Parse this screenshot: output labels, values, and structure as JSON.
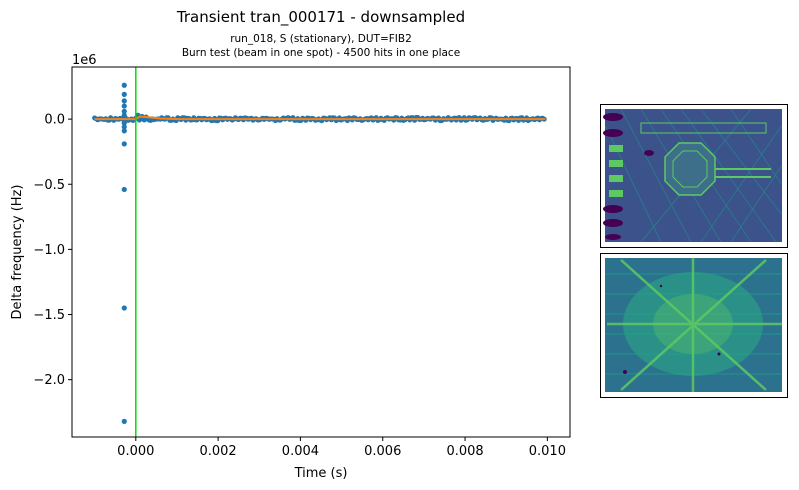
{
  "chart_data": {
    "type": "scatter",
    "title": "Transient tran_000171 - downsampled",
    "subtitle_lines": [
      "run_018, S (stationary), DUT=FIB2",
      "Burn test (beam in one spot) - 4500 hits in one place"
    ],
    "xlabel": "Time (s)",
    "ylabel": "Delta frequency (Hz)",
    "y_offset_label": "1e6",
    "xlim": [
      -0.00155,
      0.01055
    ],
    "ylim": [
      -2.44,
      0.4
    ],
    "x_ticks": [
      0.0,
      0.002,
      0.004,
      0.006,
      0.008,
      0.01
    ],
    "x_tick_labels": [
      "0.000",
      "0.002",
      "0.004",
      "0.006",
      "0.008",
      "0.010"
    ],
    "y_ticks": [
      -2.0,
      -1.5,
      -1.0,
      -0.5,
      0.0
    ],
    "y_tick_labels": [
      "−2.0",
      "−1.5",
      "−1.0",
      "−0.5",
      "0.0"
    ],
    "grid": false,
    "trigger_line": {
      "x": 0.0,
      "color": "#00e000"
    },
    "series": [
      {
        "kind": "scatter",
        "color": "#1f77b4",
        "baseline": {
          "x_start": -0.001,
          "x_end": 0.00995,
          "y": 0.0
        },
        "spike_points": [
          {
            "x": -0.00028,
            "y": 0.26
          },
          {
            "x": -0.00028,
            "y": 0.19
          },
          {
            "x": -0.00028,
            "y": 0.14
          },
          {
            "x": -0.00028,
            "y": 0.1
          },
          {
            "x": -0.00028,
            "y": 0.06
          },
          {
            "x": -0.00028,
            "y": 0.03
          },
          {
            "x": -0.00028,
            "y": -0.03
          },
          {
            "x": -0.00028,
            "y": -0.06
          },
          {
            "x": -0.00028,
            "y": -0.09
          },
          {
            "x": -0.00028,
            "y": -0.19
          },
          {
            "x": -0.00028,
            "y": -0.54
          },
          {
            "x": -0.00028,
            "y": -1.45
          },
          {
            "x": -0.00028,
            "y": -2.32
          },
          {
            "x": 5e-05,
            "y": 0.03
          },
          {
            "x": 0.00015,
            "y": 0.02
          },
          {
            "x": 0.00025,
            "y": 0.015
          }
        ]
      },
      {
        "kind": "line",
        "color": "#ff7f0e",
        "x": [
          -0.001,
          0.0,
          0.0001,
          0.0003,
          0.0006,
          0.001,
          0.00995
        ],
        "y": [
          0.0,
          0.0,
          0.02,
          0.015,
          0.005,
          0.0,
          0.0
        ]
      }
    ]
  },
  "thumbnails": [
    {
      "name": "chip-overview-image",
      "palette": [
        "#3b528b",
        "#21918c",
        "#5ec962",
        "#440154"
      ]
    },
    {
      "name": "beam-burn-spot-image",
      "palette": [
        "#2c728e",
        "#27ad81",
        "#5ec962",
        "#440154"
      ]
    }
  ]
}
